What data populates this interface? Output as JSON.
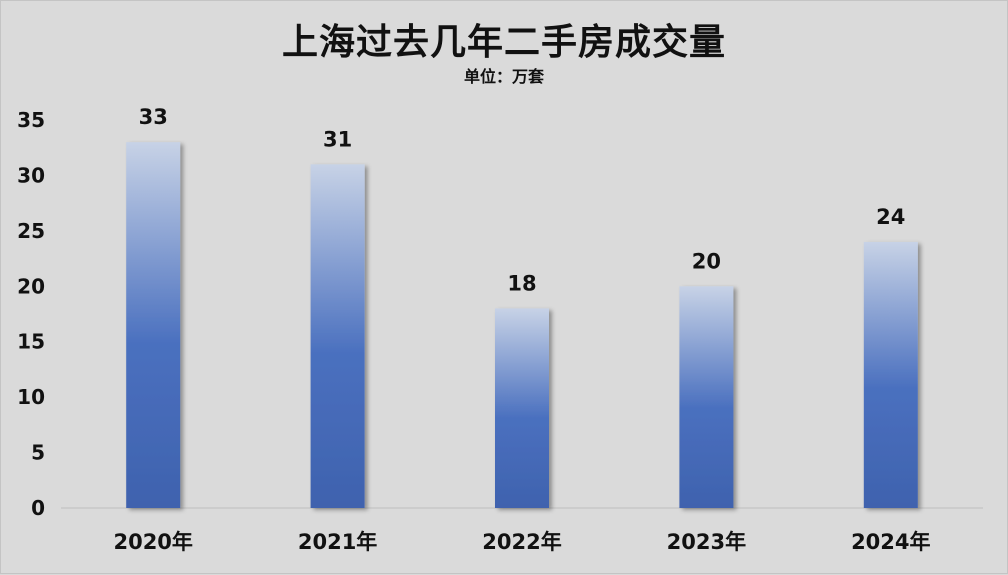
{
  "chart_data": {
    "type": "bar",
    "title": "上海过去几年二手房成交量",
    "subtitle": "单位：万套",
    "categories": [
      "2020年",
      "2021年",
      "2022年",
      "2023年",
      "2024年"
    ],
    "values": [
      33,
      31,
      18,
      20,
      24
    ],
    "ylim": [
      0,
      35
    ],
    "yticks": [
      0,
      5,
      10,
      15,
      20,
      25,
      30,
      35
    ],
    "grid": false,
    "data_labels": true,
    "bar_color_top": "#c7d2e6",
    "bar_color_bottom": "#3f62ae"
  }
}
